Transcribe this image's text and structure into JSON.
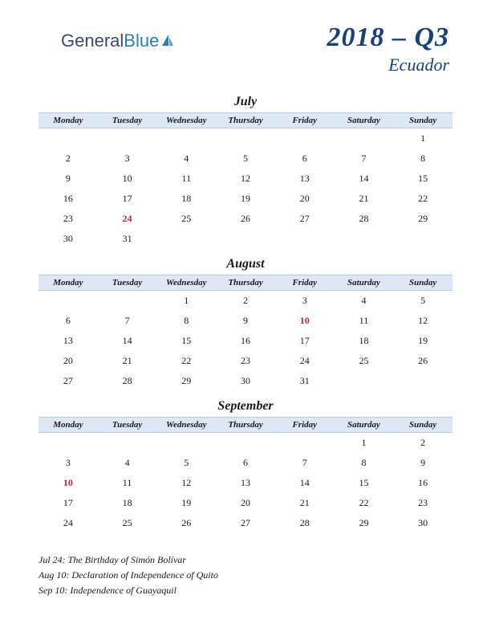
{
  "logo": {
    "part1": "General",
    "part2": "Blue"
  },
  "header": {
    "quarter": "2018 – Q3",
    "country": "Ecuador"
  },
  "dayNames": [
    "Monday",
    "Tuesday",
    "Wednesday",
    "Thursday",
    "Friday",
    "Saturday",
    "Sunday"
  ],
  "colors": {
    "headerBg": "#dde7f5",
    "headerBorder": "#b8c8e0",
    "titleColor": "#1a3f7a",
    "holidayColor": "#c41e3a",
    "textColor": "#1a1a1a",
    "logoColor1": "#3b4a6b",
    "logoColor2": "#2a7bbf"
  },
  "months": [
    {
      "name": "July",
      "weeks": [
        [
          "",
          "",
          "",
          "",
          "",
          "",
          "1"
        ],
        [
          "2",
          "3",
          "4",
          "5",
          "6",
          "7",
          "8"
        ],
        [
          "9",
          "10",
          "11",
          "12",
          "13",
          "14",
          "15"
        ],
        [
          "16",
          "17",
          "18",
          "19",
          "20",
          "21",
          "22"
        ],
        [
          "23",
          "24",
          "25",
          "26",
          "27",
          "28",
          "29"
        ],
        [
          "30",
          "31",
          "",
          "",
          "",
          "",
          ""
        ]
      ],
      "holidays": [
        "24"
      ]
    },
    {
      "name": "August",
      "weeks": [
        [
          "",
          "",
          "1",
          "2",
          "3",
          "4",
          "5"
        ],
        [
          "6",
          "7",
          "8",
          "9",
          "10",
          "11",
          "12"
        ],
        [
          "13",
          "14",
          "15",
          "16",
          "17",
          "18",
          "19"
        ],
        [
          "20",
          "21",
          "22",
          "23",
          "24",
          "25",
          "26"
        ],
        [
          "27",
          "28",
          "29",
          "30",
          "31",
          "",
          ""
        ]
      ],
      "holidays": [
        "10"
      ]
    },
    {
      "name": "September",
      "weeks": [
        [
          "",
          "",
          "",
          "",
          "",
          "1",
          "2"
        ],
        [
          "3",
          "4",
          "5",
          "6",
          "7",
          "8",
          "9"
        ],
        [
          "10",
          "11",
          "12",
          "13",
          "14",
          "15",
          "16"
        ],
        [
          "17",
          "18",
          "19",
          "20",
          "21",
          "22",
          "23"
        ],
        [
          "24",
          "25",
          "26",
          "27",
          "28",
          "29",
          "30"
        ]
      ],
      "holidays": [
        "10"
      ]
    }
  ],
  "holidayNotes": [
    "Jul 24: The Birthday of Simón Bolívar",
    "Aug 10: Declaration of Independence of Quito",
    "Sep 10: Independence of Guayaquil"
  ]
}
